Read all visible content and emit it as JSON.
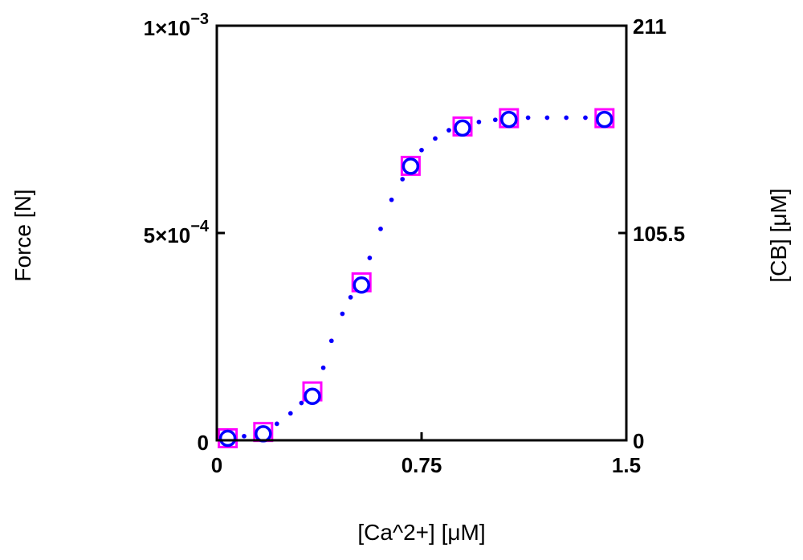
{
  "chart_data": {
    "type": "scatter",
    "xlabel": "[Ca^2+] [μM]",
    "ylabel": "Force [N]",
    "ylabel_right": "[CB] [μM]",
    "xlim": [
      0,
      1.5
    ],
    "ylim": [
      0,
      0.001
    ],
    "ylim_right": [
      0,
      211
    ],
    "x_ticks": [
      0,
      0.75,
      1.5
    ],
    "x_tick_labels": [
      "0",
      "0.75",
      "1.5"
    ],
    "y_ticks": [
      0,
      0.0005,
      0.001
    ],
    "y_tick_labels": [
      {
        "mantissa": "0",
        "exp": ""
      },
      {
        "mantissa": "5×10",
        "exp": "−4"
      },
      {
        "mantissa": "1×10",
        "exp": "−3"
      }
    ],
    "y_right_ticks": [
      0,
      105.5,
      211
    ],
    "y_right_tick_labels": [
      "0",
      "105.5",
      "211"
    ],
    "grid": false,
    "series": [
      {
        "marker": "square",
        "color": "#ff00ff",
        "axis": "left",
        "x": [
          0.04,
          0.17,
          0.35,
          0.53,
          0.71,
          0.9,
          1.07,
          1.42
        ],
        "y": [
          5e-06,
          2e-05,
          0.000118,
          0.000381,
          0.000662,
          0.000757,
          0.000777,
          0.000777
        ]
      },
      {
        "marker": "circle",
        "color": "#0000ff",
        "axis": "right",
        "x": [
          0.04,
          0.17,
          0.35,
          0.53,
          0.71,
          0.9,
          1.07,
          1.42
        ],
        "y": [
          1.0,
          3.3,
          22.4,
          79.0,
          139.5,
          158.9,
          163.3,
          163.3
        ]
      },
      {
        "line": "dotted",
        "color": "#ff00ff",
        "axis": "left",
        "x": [
          0.04,
          0.1,
          0.17,
          0.22,
          0.27,
          0.31,
          0.35,
          0.39,
          0.42,
          0.46,
          0.49,
          0.53,
          0.56,
          0.6,
          0.64,
          0.68,
          0.71,
          0.75,
          0.8,
          0.85,
          0.9,
          0.96,
          1.02,
          1.07,
          1.14,
          1.21,
          1.28,
          1.35,
          1.42
        ],
        "y": [
          4e-06,
          1e-05,
          2.2e-05,
          4e-05,
          6.5e-05,
          9e-05,
          0.00012,
          0.000175,
          0.00024,
          0.000305,
          0.000345,
          0.000385,
          0.00044,
          0.00051,
          0.00058,
          0.00063,
          0.000662,
          0.0007,
          0.000728,
          0.000748,
          0.00076,
          0.000768,
          0.000773,
          0.000777,
          0.000778,
          0.000778,
          0.000778,
          0.000778,
          0.000778
        ]
      },
      {
        "line": "dotted",
        "color": "#0000ff",
        "axis": "right",
        "x": [
          0.04,
          0.1,
          0.17,
          0.22,
          0.27,
          0.31,
          0.35,
          0.39,
          0.42,
          0.46,
          0.49,
          0.53,
          0.56,
          0.6,
          0.64,
          0.68,
          0.71,
          0.75,
          0.8,
          0.85,
          0.9,
          0.96,
          1.02,
          1.07,
          1.14,
          1.21,
          1.28,
          1.35,
          1.42
        ],
        "y": [
          0.8,
          2.1,
          4.6,
          8.4,
          13.7,
          19.0,
          25.3,
          36.9,
          50.6,
          64.4,
          72.8,
          81.2,
          92.8,
          107.6,
          122.4,
          132.9,
          139.7,
          147.7,
          153.6,
          157.8,
          160.4,
          162.0,
          163.1,
          163.9,
          164.2,
          164.2,
          164.2,
          164.2,
          164.2
        ]
      }
    ]
  }
}
